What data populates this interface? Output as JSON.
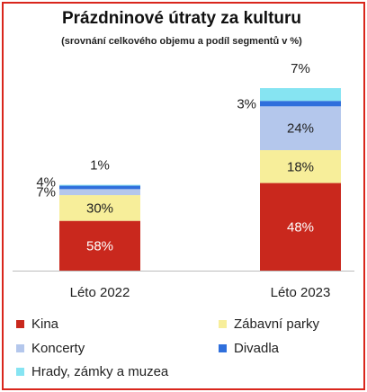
{
  "chart_data": {
    "type": "bar",
    "stacked": true,
    "title": "Prázdninové útraty za kulturu",
    "subtitle": "(srovnání celkového objemu a podíl segmentů v %)",
    "categories": [
      "Léto 2022",
      "Léto 2023"
    ],
    "series": [
      {
        "name": "Kina",
        "color": "#c9281d",
        "values": [
          58,
          48
        ]
      },
      {
        "name": "Zábavní parky",
        "color": "#f7ee9a",
        "values": [
          30,
          18
        ]
      },
      {
        "name": "Koncerty",
        "color": "#b4c7ec",
        "values": [
          7,
          24
        ]
      },
      {
        "name": "Divadla",
        "color": "#2f6fdc",
        "values": [
          4,
          3
        ]
      },
      {
        "name": "Hrady, zámky a muzea",
        "color": "#86e4f2",
        "values": [
          1,
          7
        ]
      }
    ],
    "value_labels": [
      [
        "58%",
        "30%",
        "7%",
        "4%",
        "1%"
      ],
      [
        "48%",
        "18%",
        "24%",
        "3%",
        "7%"
      ]
    ],
    "relative_totals": [
      0.47,
      1.0
    ],
    "legend_position": "bottom",
    "grid": false
  }
}
